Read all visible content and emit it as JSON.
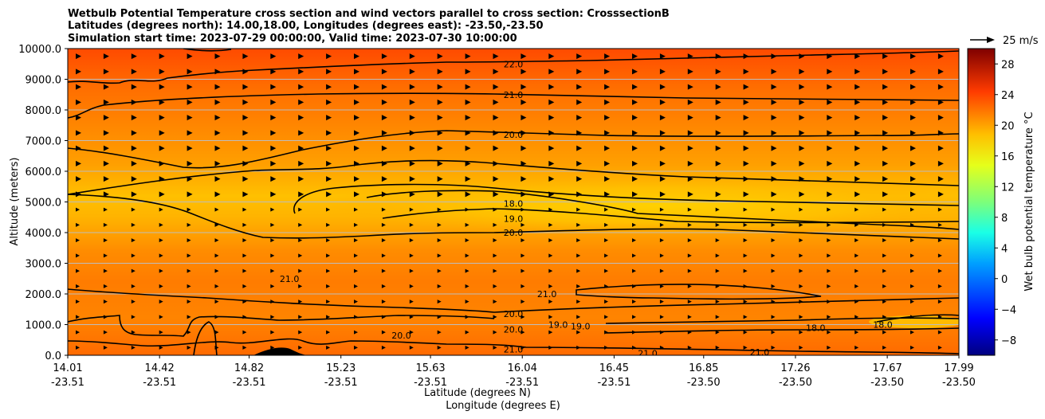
{
  "chart_data": {
    "type": "contour",
    "title_lines": [
      "Wetbulb Potential Temperature cross section and wind vectors parallel to cross section: CrosssectionB",
      "Latitudes (degrees north): 14.00,18.00, Longitudes (degrees east): -23.50,-23.50",
      "Simulation start time: 2023-07-29 00:00:00, Valid time: 2023-07-30 10:00:00"
    ],
    "ylabel": "Altitude (meters)",
    "xlabel": "Latitude (degrees N)",
    "xlabel2": "Longitude (degrees E)",
    "ylim": [
      0,
      10000
    ],
    "yticks": [
      "0.0",
      "1000.0",
      "2000.0",
      "3000.0",
      "4000.0",
      "5000.0",
      "6000.0",
      "7000.0",
      "8000.0",
      "9000.0",
      "10000.0"
    ],
    "x_range": [
      14.01,
      17.99
    ],
    "xticks": [
      {
        "lat": "14.01",
        "lon": "-23.51"
      },
      {
        "lat": "14.42",
        "lon": "-23.51"
      },
      {
        "lat": "14.82",
        "lon": "-23.51"
      },
      {
        "lat": "15.23",
        "lon": "-23.51"
      },
      {
        "lat": "15.63",
        "lon": "-23.51"
      },
      {
        "lat": "16.04",
        "lon": "-23.51"
      },
      {
        "lat": "16.45",
        "lon": "-23.51"
      },
      {
        "lat": "16.85",
        "lon": "-23.50"
      },
      {
        "lat": "17.26",
        "lon": "-23.50"
      },
      {
        "lat": "17.67",
        "lon": "-23.50"
      },
      {
        "lat": "17.99",
        "lon": "-23.50"
      }
    ],
    "colorbar": {
      "label": "Wet bulb potential temperature $^\\circ$C",
      "label_text": "Wet bulb potential temperature °C",
      "range": [
        -10,
        30
      ],
      "ticks": [
        "−8",
        "−4",
        "0",
        "4",
        "8",
        "12",
        "16",
        "20",
        "24",
        "28"
      ]
    },
    "wind_reference": "25 m/s",
    "contour_labels": [
      {
        "text": "22.0",
        "x": 16.0,
        "y": 9500
      },
      {
        "text": "21.0",
        "x": 16.0,
        "y": 8500
      },
      {
        "text": "20.0",
        "x": 16.0,
        "y": 7200
      },
      {
        "text": "18.0",
        "x": 16.0,
        "y": 4950
      },
      {
        "text": "19.0",
        "x": 16.0,
        "y": 4450
      },
      {
        "text": "20.0",
        "x": 16.0,
        "y": 4000
      },
      {
        "text": "21.0",
        "x": 15.0,
        "y": 2500
      },
      {
        "text": "20.0",
        "x": 16.0,
        "y": 1350
      },
      {
        "text": "20.0",
        "x": 16.0,
        "y": 850
      },
      {
        "text": "21.0",
        "x": 16.0,
        "y": 200
      },
      {
        "text": "20.0",
        "x": 15.5,
        "y": 650
      },
      {
        "text": "21.0",
        "x": 16.15,
        "y": 2000
      },
      {
        "text": "19.0",
        "x": 16.2,
        "y": 1000
      },
      {
        "text": "19.0",
        "x": 16.3,
        "y": 950
      },
      {
        "text": "21.0",
        "x": 16.6,
        "y": 60
      },
      {
        "text": "21.0",
        "x": 17.1,
        "y": 100
      },
      {
        "text": "18.0",
        "x": 17.35,
        "y": 900
      },
      {
        "text": "18.0",
        "x": 17.65,
        "y": 1000
      }
    ]
  }
}
